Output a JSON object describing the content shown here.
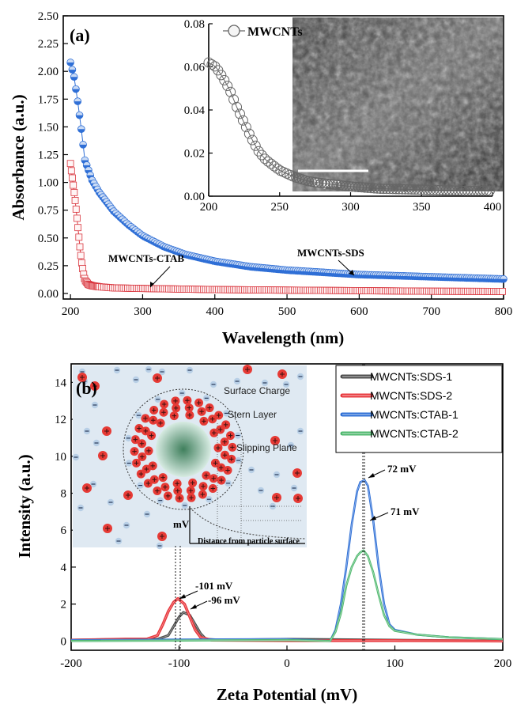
{
  "chart_data": [
    {
      "panel": "(a)",
      "type": "scatter",
      "xlabel": "Wavelength (nm)",
      "ylabel": "Absorbance (a.u.)",
      "xlim": [
        190,
        800
      ],
      "ylim": [
        -0.05,
        2.5
      ],
      "xticks": [
        "200",
        "300",
        "400",
        "500",
        "600",
        "700",
        "800"
      ],
      "yticks": [
        "0.00",
        "0.25",
        "0.50",
        "0.75",
        "1.00",
        "1.25",
        "1.50",
        "1.75",
        "2.00",
        "2.25",
        "2.50"
      ],
      "series": [
        {
          "name": "MWCNTs-SDS",
          "color": "#2f6fd6",
          "x": [
            200,
            205,
            210,
            215,
            220,
            230,
            240,
            260,
            280,
            300,
            330,
            360,
            400,
            450,
            500,
            550,
            600,
            650,
            700,
            750,
            800
          ],
          "y": [
            2.08,
            1.95,
            1.73,
            1.48,
            1.2,
            1.02,
            0.91,
            0.74,
            0.62,
            0.52,
            0.42,
            0.35,
            0.29,
            0.24,
            0.21,
            0.19,
            0.17,
            0.16,
            0.15,
            0.14,
            0.13
          ]
        },
        {
          "name": "MWCNTs-CTAB",
          "color": "#d9363e",
          "x": [
            200,
            205,
            207,
            210,
            213,
            215,
            218,
            220,
            225,
            230,
            240,
            260,
            300,
            350,
            400,
            500,
            600,
            700,
            800
          ],
          "y": [
            1.17,
            0.92,
            0.81,
            0.62,
            0.42,
            0.3,
            0.18,
            0.12,
            0.08,
            0.07,
            0.06,
            0.05,
            0.045,
            0.04,
            0.035,
            0.03,
            0.025,
            0.02,
            0.018
          ]
        }
      ],
      "annotations": [
        "MWCNTs-CTAB",
        "MWCNTs-SDS"
      ],
      "inset": {
        "type": "scatter",
        "legend": "MWCNTs",
        "xlim": [
          200,
          400
        ],
        "ylim": [
          0.0,
          0.08
        ],
        "xticks": [
          "200",
          "250",
          "300",
          "350",
          "400"
        ],
        "yticks": [
          "0.00",
          "0.02",
          "0.04",
          "0.06",
          "0.08"
        ],
        "series": [
          {
            "name": "MWCNTs",
            "color": "#666666",
            "x": [
              200,
              205,
              210,
              215,
              220,
              225,
              230,
              235,
              240,
              250,
              260,
              270,
              280,
              300,
              320,
              350,
              380,
              400
            ],
            "y": [
              0.062,
              0.06,
              0.055,
              0.049,
              0.041,
              0.034,
              0.027,
              0.021,
              0.017,
              0.012,
              0.009,
              0.007,
              0.006,
              0.0045,
              0.0035,
              0.003,
              0.0025,
              0.0025
            ]
          }
        ],
        "sem_scale_label": "5 µm"
      }
    },
    {
      "panel": "(b)",
      "type": "line",
      "xlabel": "Zeta Potential (mV)",
      "ylabel": "Intensity (a.u.)",
      "xlim": [
        -200,
        200
      ],
      "ylim": [
        -0.5,
        15
      ],
      "xticks": [
        "-200",
        "-100",
        "0",
        "100",
        "200"
      ],
      "yticks": [
        "0",
        "2",
        "4",
        "6",
        "8",
        "10",
        "12",
        "14"
      ],
      "series": [
        {
          "name": "MWCNTs:SDS-1",
          "color": "#4d4d4d",
          "x": [
            -200,
            -150,
            -120,
            -110,
            -105,
            -100,
            -96,
            -90,
            -85,
            -80,
            -75,
            -60,
            0,
            100,
            200
          ],
          "y": [
            0.05,
            0.1,
            0.1,
            0.3,
            0.8,
            1.3,
            1.55,
            1.4,
            0.9,
            0.4,
            0.1,
            0.05,
            0.1,
            0.05,
            0.0
          ]
        },
        {
          "name": "MWCNTs:SDS-2",
          "color": "#e8383d",
          "x": [
            -200,
            -150,
            -130,
            -120,
            -115,
            -110,
            -105,
            -101,
            -95,
            -90,
            -85,
            -80,
            -70,
            0,
            100,
            200
          ],
          "y": [
            0.05,
            0.1,
            0.1,
            0.3,
            0.9,
            1.6,
            2.1,
            2.3,
            2.0,
            1.3,
            0.6,
            0.2,
            0.05,
            0.02,
            0.02,
            0.0
          ]
        },
        {
          "name": "MWCNTs:CTAB-1",
          "color": "#2e6fd6",
          "x": [
            -200,
            0,
            40,
            45,
            50,
            55,
            60,
            65,
            68,
            72,
            75,
            80,
            85,
            90,
            95,
            100,
            120,
            150,
            200
          ],
          "y": [
            0.05,
            0.1,
            0.0,
            0.6,
            2.0,
            4.0,
            6.3,
            8.1,
            8.6,
            8.7,
            8.4,
            6.5,
            4.0,
            2.0,
            0.9,
            0.6,
            0.35,
            0.2,
            0.1
          ]
        },
        {
          "name": "MWCNTs:CTAB-2",
          "color": "#4fb86e",
          "x": [
            -200,
            0,
            40,
            45,
            50,
            55,
            60,
            65,
            68,
            71,
            75,
            80,
            85,
            90,
            95,
            100,
            120,
            150,
            200
          ],
          "y": [
            0.0,
            0.05,
            0.0,
            0.5,
            1.5,
            3.0,
            4.0,
            4.6,
            4.8,
            4.9,
            4.6,
            3.7,
            2.5,
            1.4,
            0.8,
            0.55,
            0.35,
            0.2,
            0.1
          ]
        }
      ],
      "annotations": [
        {
          "text": "-101 mV",
          "x": -101
        },
        {
          "text": "-96 mV",
          "x": -96
        },
        {
          "text": "72 mV",
          "x": 72
        },
        {
          "text": "71 mV",
          "x": 71
        }
      ],
      "inset_labels": [
        "Surface Charge",
        "Stern Layer",
        "Slipping Plane",
        "mV",
        "Distance from particle surface"
      ]
    }
  ]
}
